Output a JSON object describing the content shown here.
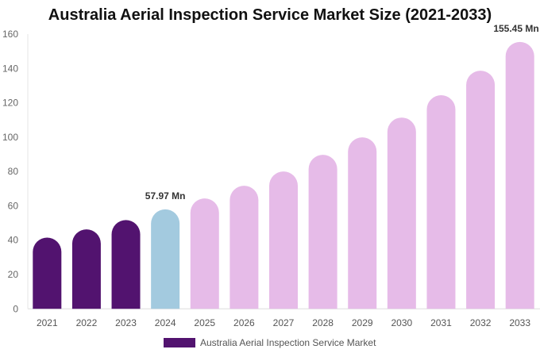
{
  "chart_data": {
    "type": "bar",
    "title": "Australia Aerial Inspection Service Market Size (2021-2033)",
    "xlabel": "",
    "ylabel": "",
    "ylim": [
      0,
      160
    ],
    "yticks": [
      0,
      20,
      40,
      60,
      80,
      100,
      120,
      140,
      160
    ],
    "grid": false,
    "legend_position": "bottom",
    "categories": [
      "2021",
      "2022",
      "2023",
      "2024",
      "2025",
      "2026",
      "2027",
      "2028",
      "2029",
      "2030",
      "2031",
      "2032",
      "2033"
    ],
    "series": [
      {
        "name": "Australia Aerial Inspection Service Market",
        "values": [
          41.5,
          46.3,
          51.7,
          57.97,
          64.3,
          71.7,
          80.0,
          89.7,
          99.9,
          111.4,
          124.4,
          138.7,
          155.45
        ],
        "colors": [
          "#52136f",
          "#52136f",
          "#52136f",
          "#a3cadf",
          "#e6bbe8",
          "#e6bbe8",
          "#e6bbe8",
          "#e6bbe8",
          "#e6bbe8",
          "#e6bbe8",
          "#e6bbe8",
          "#e6bbe8",
          "#e6bbe8"
        ]
      }
    ],
    "data_labels": [
      {
        "category": "2024",
        "text": "57.97 Mn"
      },
      {
        "category": "2033",
        "text": "155.45 Mn"
      }
    ],
    "legend_color": "#52136f"
  }
}
